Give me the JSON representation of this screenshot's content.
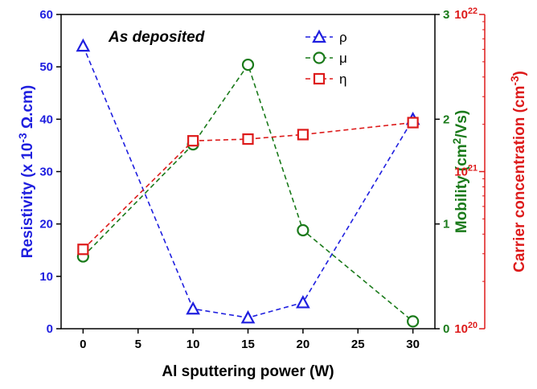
{
  "chart_data": {
    "type": "line",
    "annotation": "As deposited",
    "xlabel": "Al sputtering power (W)",
    "x_ticks": [
      "0",
      "5",
      "10",
      "15",
      "20",
      "25",
      "30"
    ],
    "xlim": [
      -2,
      32
    ],
    "axes": {
      "left": {
        "label_parts": [
          "Resistivity (x 10",
          "-3",
          " Ω.cm)"
        ],
        "ticks": [
          "0",
          "10",
          "20",
          "30",
          "40",
          "50",
          "60"
        ],
        "ylim": [
          0,
          60
        ],
        "color": "#1f1fdf"
      },
      "right1": {
        "label_parts": [
          "Mobility (cm",
          "2",
          "/Vs)"
        ],
        "ticks": [
          "0",
          "1",
          "2",
          "3"
        ],
        "ylim": [
          0,
          3
        ],
        "color": "#1a7a1a"
      },
      "right2": {
        "label_parts": [
          "Carrier concentration (cm",
          "-3",
          ")"
        ],
        "scale": "log",
        "ylim": [
          1e+20,
          1e+22
        ],
        "tick_values": [
          1e+20,
          1e+21,
          1e+22
        ],
        "tick_labels": [
          [
            "10",
            "20"
          ],
          [
            "10",
            "21"
          ],
          [
            "10",
            "22"
          ]
        ],
        "color": "#dd1a1a"
      }
    },
    "series": [
      {
        "name": "ρ",
        "axis": "left",
        "marker": "triangle",
        "color": "#1f1fdf",
        "x": [
          0,
          10,
          15,
          20,
          30
        ],
        "y": [
          54,
          3.8,
          2.1,
          5.0,
          40
        ]
      },
      {
        "name": "μ",
        "axis": "right1",
        "marker": "circle",
        "color": "#1a7a1a",
        "x": [
          0,
          10,
          15,
          20,
          30
        ],
        "y": [
          0.69,
          1.76,
          2.52,
          0.94,
          0.07
        ]
      },
      {
        "name": "η",
        "axis": "right2",
        "marker": "square",
        "color": "#dd1a1a",
        "x": [
          0,
          10,
          15,
          20,
          30
        ],
        "y": [
          3.2e+20,
          1.57e+21,
          1.61e+21,
          1.72e+21,
          2.05e+21
        ]
      }
    ],
    "legend_position": "top-center",
    "grid": false
  }
}
